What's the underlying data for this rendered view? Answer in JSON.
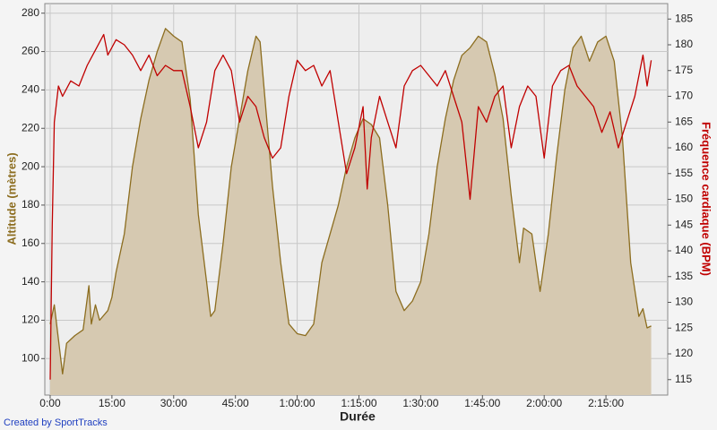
{
  "chart_data": {
    "type": "line",
    "xlabel": "Durée",
    "ylabel": "Altitude (mètres)",
    "y2label": "Fréquence cardiaque (BPM)",
    "footer": "Created by SportTracks",
    "grid": true,
    "xlim": [
      -1.3,
      150
    ],
    "xticks": [
      {
        "value": 0,
        "label": "0:00"
      },
      {
        "value": 15,
        "label": "15:00"
      },
      {
        "value": 30,
        "label": "30:00"
      },
      {
        "value": 45,
        "label": "45:00"
      },
      {
        "value": 60,
        "label": "1:00:00"
      },
      {
        "value": 75,
        "label": "1:15:00"
      },
      {
        "value": 90,
        "label": "1:30:00"
      },
      {
        "value": 105,
        "label": "1:45:00"
      },
      {
        "value": 120,
        "label": "2:00:00"
      },
      {
        "value": 135,
        "label": "2:15:00"
      }
    ],
    "ylim": [
      81,
      285
    ],
    "yticks": [
      100,
      120,
      140,
      160,
      180,
      200,
      220,
      240,
      260,
      280
    ],
    "y2lim": [
      112,
      188
    ],
    "y2ticks": [
      115,
      120,
      125,
      130,
      135,
      140,
      145,
      150,
      155,
      160,
      165,
      170,
      175,
      180,
      185
    ],
    "series": [
      {
        "color": "#8c6d1f",
        "fill": "#d6c9b1",
        "axis": "y",
        "x": [
          0,
          1,
          3,
          4,
          6,
          8,
          9.4,
          10,
          11,
          12,
          14,
          15,
          16,
          18,
          20,
          22,
          24,
          26,
          28,
          30,
          32,
          34,
          36,
          38,
          39,
          40,
          42,
          44,
          46,
          48,
          50,
          51,
          52,
          54,
          56,
          58,
          60,
          62,
          64,
          66,
          68,
          70,
          72,
          74,
          76,
          78,
          80,
          82,
          84,
          86,
          88,
          90,
          92,
          94,
          96,
          98,
          100,
          102,
          104,
          106,
          108,
          110,
          112,
          114,
          115,
          117,
          119,
          121,
          123,
          125,
          127,
          129,
          131,
          133,
          135,
          137,
          139,
          141,
          143,
          144,
          145,
          146
        ],
        "values": [
          118,
          128,
          92,
          108,
          112,
          115,
          138,
          118,
          128,
          120,
          125,
          132,
          145,
          165,
          200,
          225,
          245,
          260,
          272,
          268,
          265,
          235,
          175,
          140,
          122,
          125,
          160,
          200,
          225,
          250,
          268,
          265,
          240,
          190,
          150,
          118,
          113,
          112,
          118,
          150,
          165,
          180,
          200,
          215,
          225,
          222,
          215,
          180,
          135,
          125,
          130,
          140,
          165,
          200,
          225,
          245,
          258,
          262,
          268,
          265,
          248,
          225,
          185,
          150,
          168,
          165,
          135,
          165,
          205,
          240,
          262,
          268,
          255,
          265,
          268,
          255,
          215,
          150,
          122,
          126,
          116,
          117
        ]
      },
      {
        "color": "#c00000",
        "axis": "y2",
        "x": [
          0,
          0.5,
          1,
          2,
          3,
          5,
          7,
          9,
          11,
          13,
          14,
          16,
          18,
          20,
          22,
          24,
          26,
          28,
          30,
          32,
          34,
          36,
          38,
          40,
          42,
          44,
          46,
          48,
          50,
          52,
          54,
          56,
          58,
          60,
          62,
          64,
          66,
          68,
          70,
          72,
          74,
          76,
          77,
          78,
          80,
          82,
          84,
          86,
          88,
          90,
          92,
          94,
          96,
          98,
          100,
          102,
          104,
          106,
          108,
          110,
          112,
          114,
          116,
          118,
          120,
          122,
          124,
          126,
          128,
          130,
          132,
          134,
          136,
          138,
          140,
          142,
          144,
          145,
          146
        ],
        "values": [
          115,
          145,
          165,
          172,
          170,
          173,
          172,
          176,
          179,
          182,
          178,
          181,
          180,
          178,
          175,
          178,
          174,
          176,
          175,
          175,
          168,
          160,
          165,
          175,
          178,
          175,
          165,
          170,
          168,
          162,
          158,
          160,
          170,
          177,
          175,
          176,
          172,
          175,
          165,
          155,
          160,
          168,
          152,
          162,
          170,
          165,
          160,
          172,
          175,
          176,
          174,
          172,
          175,
          170,
          165,
          150,
          168,
          165,
          170,
          172,
          160,
          168,
          172,
          170,
          158,
          172,
          175,
          176,
          172,
          170,
          168,
          163,
          167,
          160,
          165,
          170,
          178,
          172,
          177
        ]
      }
    ]
  }
}
